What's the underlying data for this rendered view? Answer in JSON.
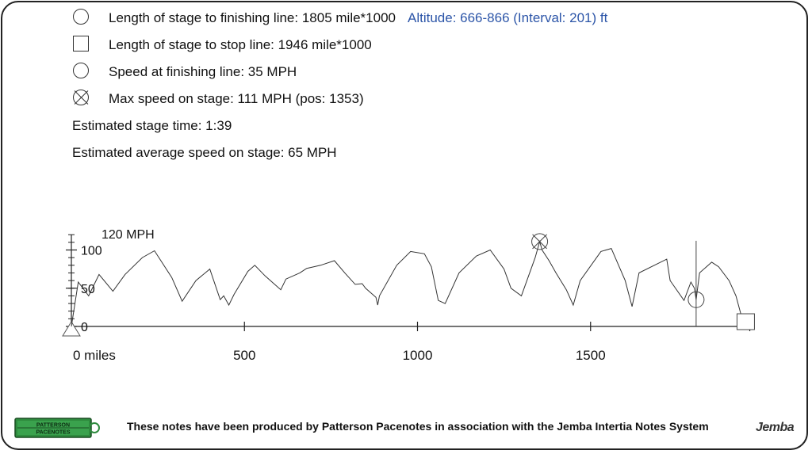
{
  "legend": {
    "finish": "Length of stage to finishing line: 1805 mile*1000",
    "stop": "Length of stage to stop line: 1946 mile*1000",
    "speed_finish": "Speed at finishing line: 35 MPH",
    "max_speed": "Max speed on stage: 111 MPH (pos: 1353)"
  },
  "altitude": "Altitude: 666-866 (Interval: 201) ft",
  "stats": {
    "time": "Estimated stage time: 1:39",
    "avg": "Estimated average speed on stage: 65 MPH"
  },
  "footer": {
    "text": "These notes have been produced by Patterson Pacenotes in association with the Jemba Intertia Notes System",
    "logo_left_line1": "PATTERSON",
    "logo_left_line2": "PACENOTES",
    "logo_right": "Jemba"
  },
  "chart_data": {
    "type": "line",
    "xlabel": "",
    "ylabel": "",
    "x_unit_label": "miles",
    "y_unit_label": "120 MPH",
    "xlim": [
      0,
      1960
    ],
    "ylim": [
      0,
      120
    ],
    "x_ticks": [
      0,
      500,
      1000,
      1500
    ],
    "y_ticks": [
      0,
      50,
      100
    ],
    "finish_line": 1805,
    "stop_line": 1946,
    "speed_at_finish": 35,
    "max_speed": {
      "x": 1353,
      "y": 111
    },
    "series": [
      {
        "values": [
          [
            0,
            0
          ],
          [
            20,
            58
          ],
          [
            50,
            40
          ],
          [
            80,
            68
          ],
          [
            120,
            46
          ],
          [
            155,
            68
          ],
          [
            205,
            90
          ],
          [
            240,
            99
          ],
          [
            290,
            64
          ],
          [
            320,
            33
          ],
          [
            360,
            60
          ],
          [
            400,
            75
          ],
          [
            430,
            35
          ],
          [
            440,
            40
          ],
          [
            455,
            28
          ],
          [
            470,
            42
          ],
          [
            510,
            72
          ],
          [
            530,
            80
          ],
          [
            560,
            66
          ],
          [
            590,
            54
          ],
          [
            605,
            48
          ],
          [
            620,
            62
          ],
          [
            660,
            70
          ],
          [
            680,
            76
          ],
          [
            700,
            78
          ],
          [
            720,
            80
          ],
          [
            760,
            86
          ],
          [
            790,
            70
          ],
          [
            820,
            55
          ],
          [
            840,
            56
          ],
          [
            850,
            50
          ],
          [
            880,
            38
          ],
          [
            885,
            28
          ],
          [
            890,
            40
          ],
          [
            940,
            80
          ],
          [
            980,
            98
          ],
          [
            1020,
            95
          ],
          [
            1040,
            78
          ],
          [
            1060,
            34
          ],
          [
            1080,
            30
          ],
          [
            1120,
            70
          ],
          [
            1170,
            92
          ],
          [
            1210,
            100
          ],
          [
            1250,
            75
          ],
          [
            1270,
            50
          ],
          [
            1300,
            40
          ],
          [
            1340,
            90
          ],
          [
            1353,
            111
          ],
          [
            1360,
            100
          ],
          [
            1380,
            86
          ],
          [
            1400,
            70
          ],
          [
            1430,
            48
          ],
          [
            1450,
            28
          ],
          [
            1470,
            60
          ],
          [
            1530,
            98
          ],
          [
            1560,
            102
          ],
          [
            1600,
            60
          ],
          [
            1620,
            26
          ],
          [
            1640,
            70
          ],
          [
            1720,
            88
          ],
          [
            1730,
            60
          ],
          [
            1770,
            34
          ],
          [
            1790,
            58
          ],
          [
            1800,
            50
          ],
          [
            1805,
            35
          ],
          [
            1815,
            70
          ],
          [
            1850,
            84
          ],
          [
            1870,
            78
          ],
          [
            1900,
            60
          ],
          [
            1920,
            40
          ],
          [
            1935,
            15
          ],
          [
            1946,
            0
          ]
        ]
      }
    ]
  }
}
